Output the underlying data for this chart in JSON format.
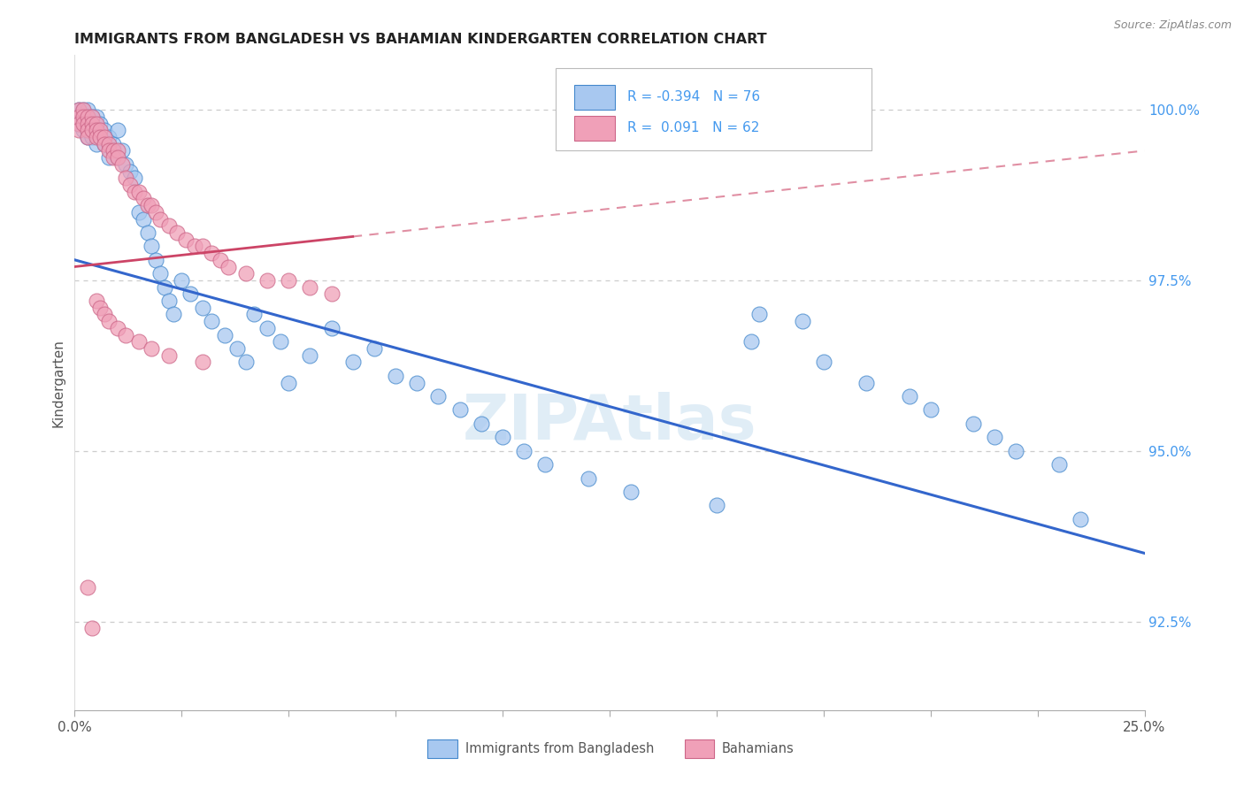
{
  "title": "IMMIGRANTS FROM BANGLADESH VS BAHAMIAN KINDERGARTEN CORRELATION CHART",
  "source": "Source: ZipAtlas.com",
  "ylabel": "Kindergarten",
  "ytick_labels": [
    "92.5%",
    "95.0%",
    "97.5%",
    "100.0%"
  ],
  "ytick_values": [
    0.925,
    0.95,
    0.975,
    1.0
  ],
  "xmin": 0.0,
  "xmax": 0.25,
  "ymin": 0.912,
  "ymax": 1.008,
  "blue_R": -0.394,
  "blue_N": 76,
  "pink_R": 0.091,
  "pink_N": 62,
  "blue_fill": "#a8c8f0",
  "pink_fill": "#f0a0b8",
  "blue_edge": "#4488cc",
  "pink_edge": "#cc6688",
  "blue_line_color": "#3366cc",
  "pink_line_color": "#cc4466",
  "legend_label_blue": "Immigrants from Bangladesh",
  "legend_label_pink": "Bahamians",
  "background_color": "#ffffff",
  "grid_color": "#cccccc",
  "watermark": "ZIPAtlas",
  "blue_x": [
    0.001,
    0.001,
    0.001,
    0.002,
    0.002,
    0.002,
    0.003,
    0.003,
    0.003,
    0.003,
    0.004,
    0.004,
    0.004,
    0.005,
    0.005,
    0.005,
    0.006,
    0.006,
    0.007,
    0.007,
    0.008,
    0.008,
    0.009,
    0.01,
    0.01,
    0.011,
    0.012,
    0.013,
    0.014,
    0.015,
    0.016,
    0.017,
    0.018,
    0.019,
    0.02,
    0.021,
    0.022,
    0.023,
    0.025,
    0.027,
    0.03,
    0.032,
    0.035,
    0.038,
    0.04,
    0.042,
    0.045,
    0.048,
    0.05,
    0.055,
    0.06,
    0.065,
    0.07,
    0.075,
    0.08,
    0.085,
    0.09,
    0.095,
    0.1,
    0.105,
    0.11,
    0.12,
    0.13,
    0.15,
    0.16,
    0.17,
    0.185,
    0.195,
    0.2,
    0.21,
    0.215,
    0.22,
    0.23,
    0.235,
    0.158,
    0.175
  ],
  "blue_y": [
    1.0,
    0.999,
    0.998,
    1.0,
    0.998,
    0.997,
    1.0,
    0.999,
    0.997,
    0.996,
    0.999,
    0.998,
    0.996,
    0.999,
    0.997,
    0.995,
    0.998,
    0.996,
    0.997,
    0.995,
    0.996,
    0.993,
    0.995,
    0.997,
    0.993,
    0.994,
    0.992,
    0.991,
    0.99,
    0.985,
    0.984,
    0.982,
    0.98,
    0.978,
    0.976,
    0.974,
    0.972,
    0.97,
    0.975,
    0.973,
    0.971,
    0.969,
    0.967,
    0.965,
    0.963,
    0.97,
    0.968,
    0.966,
    0.96,
    0.964,
    0.968,
    0.963,
    0.965,
    0.961,
    0.96,
    0.958,
    0.956,
    0.954,
    0.952,
    0.95,
    0.948,
    0.946,
    0.944,
    0.942,
    0.97,
    0.969,
    0.96,
    0.958,
    0.956,
    0.954,
    0.952,
    0.95,
    0.948,
    0.94,
    0.966,
    0.963
  ],
  "pink_x": [
    0.001,
    0.001,
    0.001,
    0.001,
    0.002,
    0.002,
    0.002,
    0.003,
    0.003,
    0.003,
    0.003,
    0.004,
    0.004,
    0.004,
    0.005,
    0.005,
    0.005,
    0.006,
    0.006,
    0.007,
    0.007,
    0.008,
    0.008,
    0.009,
    0.009,
    0.01,
    0.01,
    0.011,
    0.012,
    0.013,
    0.014,
    0.015,
    0.016,
    0.017,
    0.018,
    0.019,
    0.02,
    0.022,
    0.024,
    0.026,
    0.028,
    0.03,
    0.032,
    0.034,
    0.036,
    0.04,
    0.045,
    0.05,
    0.055,
    0.06,
    0.005,
    0.006,
    0.007,
    0.008,
    0.01,
    0.012,
    0.015,
    0.018,
    0.022,
    0.03,
    0.003,
    0.004
  ],
  "pink_y": [
    1.0,
    0.999,
    0.998,
    0.997,
    1.0,
    0.999,
    0.998,
    0.999,
    0.998,
    0.997,
    0.996,
    0.999,
    0.998,
    0.997,
    0.998,
    0.997,
    0.996,
    0.997,
    0.996,
    0.996,
    0.995,
    0.995,
    0.994,
    0.994,
    0.993,
    0.994,
    0.993,
    0.992,
    0.99,
    0.989,
    0.988,
    0.988,
    0.987,
    0.986,
    0.986,
    0.985,
    0.984,
    0.983,
    0.982,
    0.981,
    0.98,
    0.98,
    0.979,
    0.978,
    0.977,
    0.976,
    0.975,
    0.975,
    0.974,
    0.973,
    0.972,
    0.971,
    0.97,
    0.969,
    0.968,
    0.967,
    0.966,
    0.965,
    0.964,
    0.963,
    0.93,
    0.924
  ]
}
